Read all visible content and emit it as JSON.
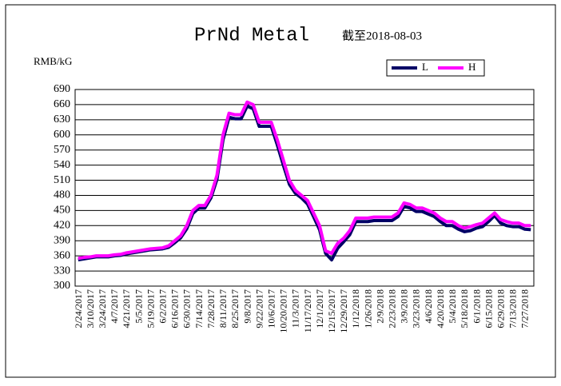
{
  "chart_data": {
    "type": "line",
    "title": "PrNd Metal",
    "subtitle": "截至2018-08-03",
    "y_label": "RMB/kG",
    "categories": [
      "2/24/2017",
      null,
      "3/10/2017",
      null,
      "3/24/2017",
      null,
      "4/7/2017",
      null,
      "4/21/2017",
      null,
      "5/5/2017",
      null,
      "5/19/2017",
      null,
      "6/2/2017",
      null,
      "6/16/2017",
      null,
      "6/30/2017",
      null,
      "7/14/2017",
      null,
      "7/28/2017",
      null,
      "8/11/2017",
      null,
      "8/25/2017",
      null,
      "9/8/2017",
      null,
      "9/22/2017",
      null,
      "10/6/2017",
      null,
      "10/20/2017",
      null,
      "11/3/2017",
      null,
      "11/17/2017",
      null,
      "12/1/2017",
      null,
      "12/15/2017",
      null,
      "12/29/2017",
      null,
      "1/12/2018",
      null,
      "1/26/2018",
      null,
      "2/9/2018",
      null,
      "2/23/2018",
      null,
      "3/9/2018",
      null,
      "3/23/2018",
      null,
      "4/6/2018",
      null,
      "4/20/2018",
      null,
      "5/4/2018",
      null,
      "5/18/2018",
      null,
      "6/1/2018",
      null,
      "6/15/2018",
      null,
      "6/29/2018",
      null,
      "7/13/2018",
      null,
      "7/27/2018",
      null
    ],
    "series": [
      {
        "name": "L",
        "color": "#000066",
        "values": [
          352,
          354,
          356,
          358,
          358,
          358,
          360,
          361,
          364,
          366,
          368,
          370,
          372,
          373,
          374,
          377,
          386,
          396,
          414,
          444,
          455,
          455,
          475,
          512,
          590,
          635,
          632,
          632,
          657,
          652,
          617,
          617,
          617,
          580,
          540,
          502,
          484,
          475,
          463,
          438,
          412,
          365,
          352,
          375,
          388,
          402,
          428,
          428,
          428,
          430,
          430,
          430,
          430,
          438,
          458,
          455,
          448,
          448,
          443,
          438,
          428,
          420,
          420,
          413,
          408,
          410,
          415,
          418,
          428,
          440,
          425,
          420,
          418,
          418,
          413,
          412
        ]
      },
      {
        "name": "H",
        "color": "#ff00ff",
        "values": [
          355,
          357,
          358,
          360,
          360,
          360,
          362,
          363,
          366,
          368,
          370,
          372,
          374,
          375,
          376,
          380,
          390,
          400,
          420,
          450,
          460,
          460,
          480,
          520,
          600,
          643,
          640,
          640,
          665,
          660,
          625,
          625,
          625,
          590,
          550,
          510,
          490,
          480,
          470,
          445,
          420,
          370,
          365,
          385,
          395,
          410,
          435,
          435,
          435,
          437,
          437,
          437,
          437,
          445,
          465,
          462,
          455,
          455,
          450,
          445,
          435,
          428,
          428,
          420,
          415,
          418,
          422,
          425,
          435,
          445,
          432,
          428,
          425,
          425,
          420,
          420
        ]
      }
    ],
    "ylim": [
      300,
      690
    ],
    "yticks": [
      300,
      330,
      360,
      390,
      420,
      450,
      480,
      510,
      540,
      570,
      600,
      630,
      660,
      690
    ],
    "grid": true,
    "legend": "top-right"
  }
}
